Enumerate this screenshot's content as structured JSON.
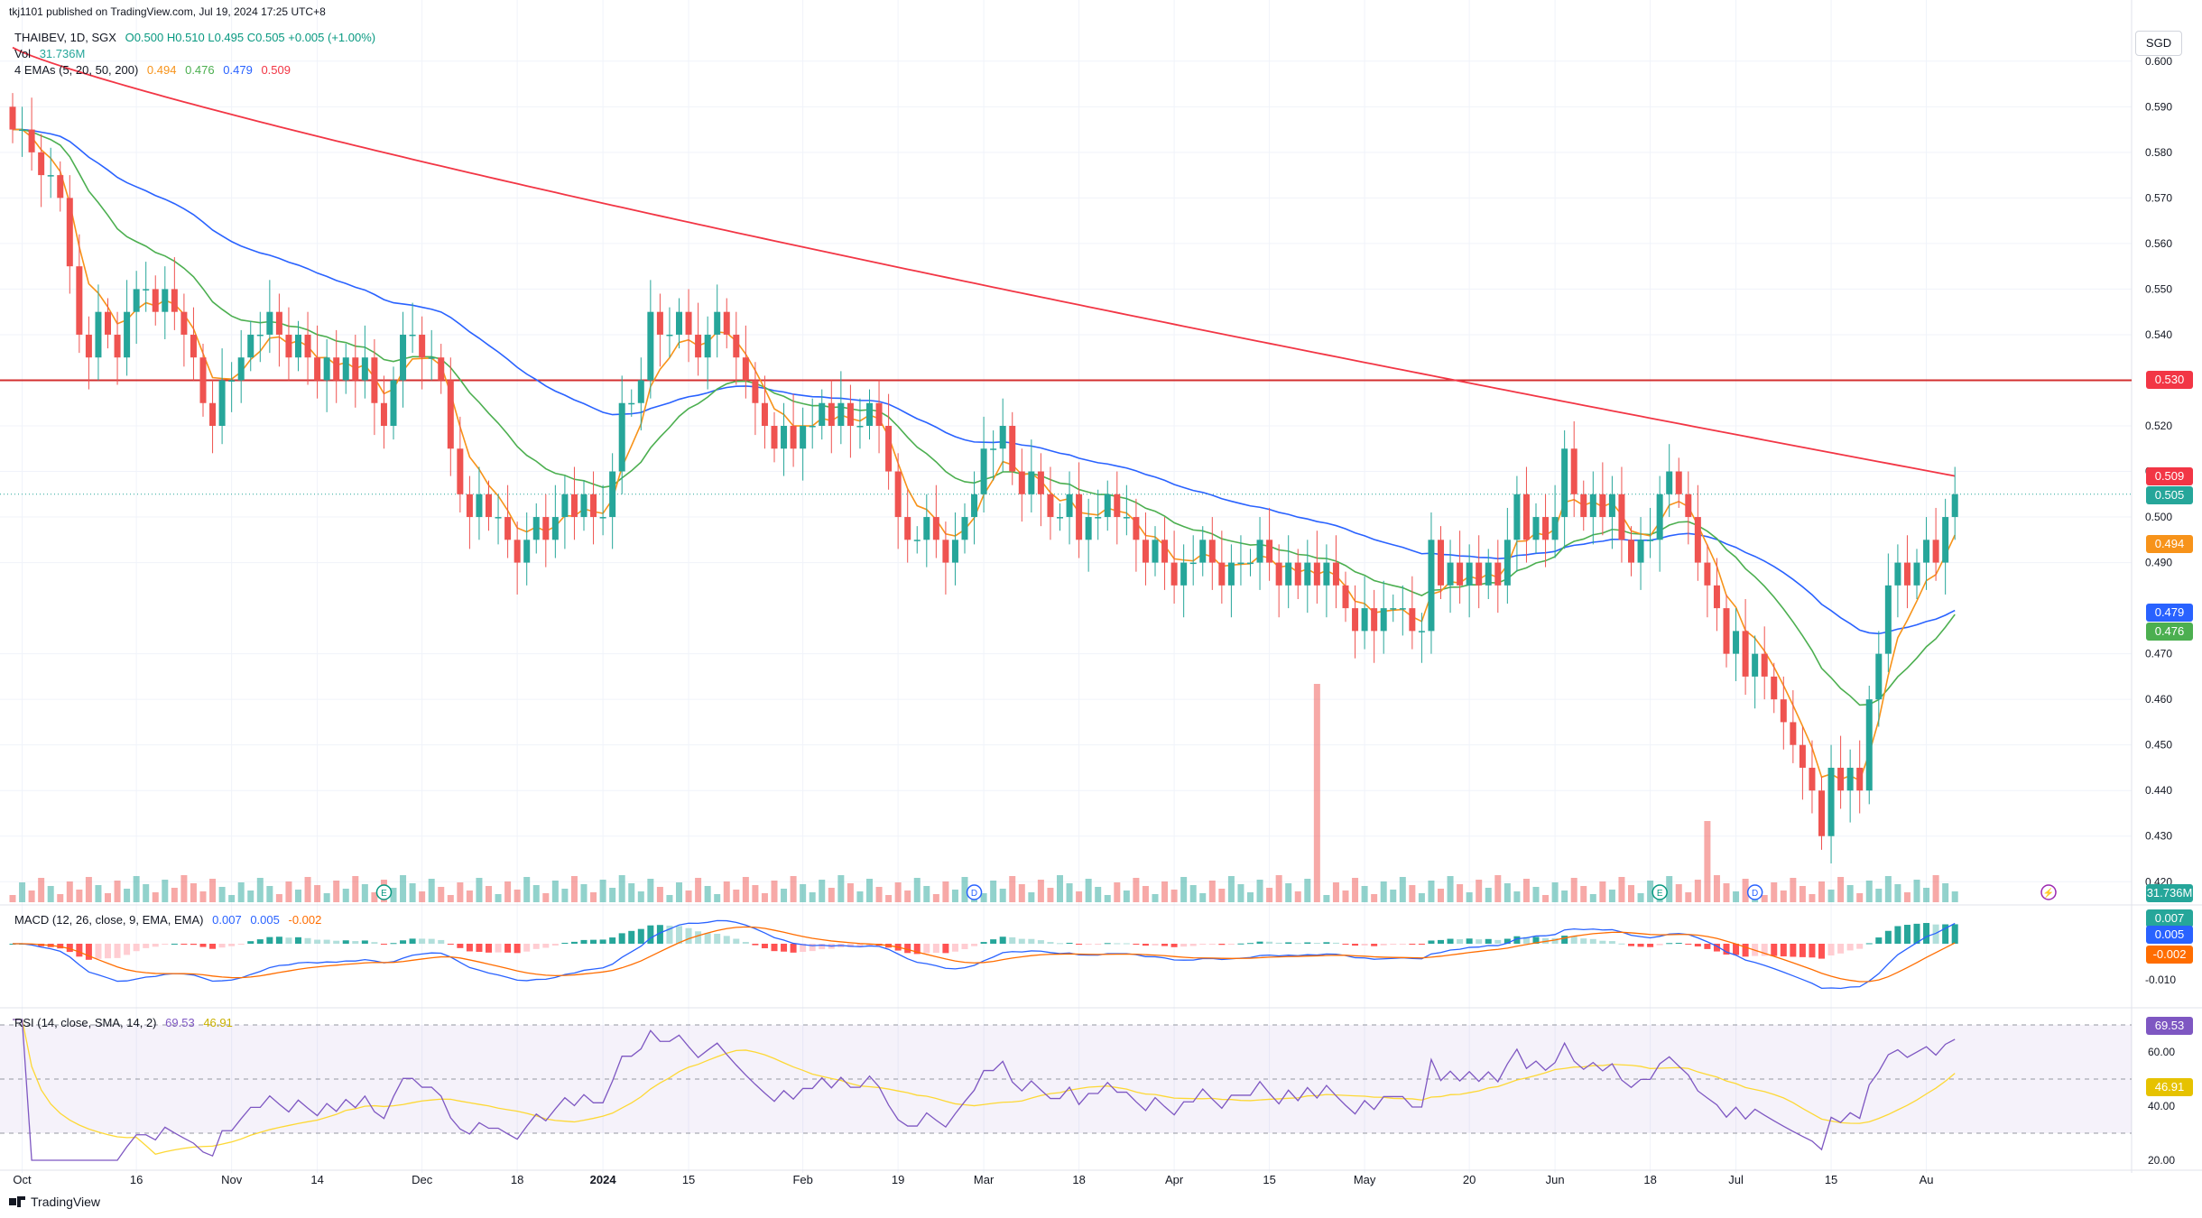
{
  "publisher_line": "tkj1101 published on TradingView.com, Jul 19, 2024 17:25 UTC+8",
  "symbol_line": {
    "symbol": "THAIBEV, 1D, SGX",
    "ohlc": "O0.500 H0.510 L0.495 C0.505 +0.005 (+1.00%)"
  },
  "vol_legend": {
    "label": "Vol",
    "value": "31.736M"
  },
  "ema_legend": {
    "label": "4 EMAs (5, 20, 50, 200)",
    "values": [
      "0.494",
      "0.476",
      "0.479",
      "0.509"
    ]
  },
  "macd_legend": {
    "label": "MACD (12, 26, close, 9, EMA, EMA)",
    "values": [
      "0.007",
      "0.005",
      "-0.002"
    ]
  },
  "rsi_legend": {
    "label": "RSI (14, close, SMA, 14, 2)",
    "values": [
      "69.53",
      "46.91"
    ]
  },
  "currency_button": "SGD",
  "footer_brand": "TradingView",
  "colors": {
    "up": "#26a69a",
    "down": "#ef5350",
    "ema5": "#f7931a",
    "ema20": "#4caf50",
    "ema50": "#2962ff",
    "ema200": "#f23645",
    "macd_line": "#2962ff",
    "signal_line": "#ff6d00",
    "rsi_line": "#7e57c2",
    "rsi_ma": "#fdd835",
    "hline": "#d32f2f"
  },
  "chart_data": {
    "type": "candlestick",
    "horizontal_line": 0.53,
    "price_axis_ticks": [
      "0.600",
      "0.590",
      "0.580",
      "0.570",
      "0.560",
      "0.550",
      "0.540",
      "0.520",
      "0.510",
      "0.500",
      "0.490",
      "0.470",
      "0.460",
      "0.450",
      "0.440",
      "0.430",
      "0.420"
    ],
    "price_range": [
      0.4155,
      0.6055
    ],
    "x_ticks": [
      {
        "i": 1,
        "label": "Oct"
      },
      {
        "i": 13,
        "label": "16"
      },
      {
        "i": 23,
        "label": "Nov"
      },
      {
        "i": 32,
        "label": "14"
      },
      {
        "i": 43,
        "label": "Dec"
      },
      {
        "i": 53,
        "label": "18"
      },
      {
        "i": 62,
        "label": "2024"
      },
      {
        "i": 71,
        "label": "15"
      },
      {
        "i": 83,
        "label": "Feb"
      },
      {
        "i": 93,
        "label": "19"
      },
      {
        "i": 102,
        "label": "Mar"
      },
      {
        "i": 112,
        "label": "18"
      },
      {
        "i": 122,
        "label": "Apr"
      },
      {
        "i": 132,
        "label": "15"
      },
      {
        "i": 142,
        "label": "May"
      },
      {
        "i": 153,
        "label": "20"
      },
      {
        "i": 162,
        "label": "Jun"
      },
      {
        "i": 172,
        "label": "18"
      },
      {
        "i": 181,
        "label": "Jul"
      },
      {
        "i": 191,
        "label": "15"
      },
      {
        "i": 201,
        "label": "Au"
      }
    ],
    "price_tags": [
      {
        "label": "0.530",
        "value": 0.53,
        "color": "#f23645"
      },
      {
        "label": "0.509",
        "value": 0.509,
        "color": "#f23645"
      },
      {
        "label": "0.505",
        "value": 0.505,
        "color": "#26a69a"
      },
      {
        "label": "0.494",
        "value": 0.494,
        "color": "#f7931a"
      },
      {
        "label": "0.479",
        "value": 0.479,
        "color": "#2962ff"
      },
      {
        "label": "0.476",
        "value": 0.476,
        "color": "#4caf50"
      }
    ],
    "close": [
      0.585,
      0.585,
      0.58,
      0.575,
      0.575,
      0.57,
      0.555,
      0.54,
      0.535,
      0.545,
      0.54,
      0.535,
      0.545,
      0.55,
      0.55,
      0.545,
      0.55,
      0.545,
      0.54,
      0.535,
      0.525,
      0.52,
      0.53,
      0.53,
      0.535,
      0.54,
      0.54,
      0.545,
      0.54,
      0.535,
      0.54,
      0.535,
      0.53,
      0.535,
      0.53,
      0.535,
      0.53,
      0.535,
      0.525,
      0.52,
      0.53,
      0.54,
      0.54,
      0.535,
      0.535,
      0.53,
      0.515,
      0.505,
      0.5,
      0.505,
      0.5,
      0.5,
      0.495,
      0.49,
      0.495,
      0.5,
      0.495,
      0.5,
      0.505,
      0.5,
      0.505,
      0.5,
      0.5,
      0.51,
      0.525,
      0.525,
      0.53,
      0.545,
      0.54,
      0.54,
      0.545,
      0.54,
      0.535,
      0.54,
      0.545,
      0.54,
      0.535,
      0.53,
      0.525,
      0.52,
      0.515,
      0.52,
      0.515,
      0.52,
      0.52,
      0.525,
      0.52,
      0.525,
      0.52,
      0.52,
      0.525,
      0.52,
      0.51,
      0.5,
      0.495,
      0.495,
      0.5,
      0.495,
      0.49,
      0.495,
      0.5,
      0.505,
      0.515,
      0.515,
      0.52,
      0.51,
      0.505,
      0.51,
      0.505,
      0.5,
      0.5,
      0.505,
      0.495,
      0.5,
      0.5,
      0.505,
      0.5,
      0.5,
      0.495,
      0.49,
      0.495,
      0.49,
      0.485,
      0.49,
      0.49,
      0.495,
      0.49,
      0.485,
      0.49,
      0.49,
      0.49,
      0.495,
      0.49,
      0.485,
      0.49,
      0.485,
      0.49,
      0.485,
      0.49,
      0.485,
      0.48,
      0.475,
      0.48,
      0.475,
      0.48,
      0.48,
      0.48,
      0.475,
      0.475,
      0.495,
      0.485,
      0.49,
      0.485,
      0.49,
      0.485,
      0.49,
      0.485,
      0.495,
      0.505,
      0.495,
      0.5,
      0.495,
      0.5,
      0.515,
      0.505,
      0.5,
      0.505,
      0.5,
      0.505,
      0.495,
      0.49,
      0.495,
      0.495,
      0.505,
      0.51,
      0.505,
      0.5,
      0.49,
      0.485,
      0.48,
      0.47,
      0.475,
      0.465,
      0.47,
      0.465,
      0.46,
      0.455,
      0.45,
      0.445,
      0.44,
      0.43,
      0.445,
      0.44,
      0.445,
      0.44,
      0.46,
      0.47,
      0.485,
      0.49,
      0.485,
      0.49,
      0.495,
      0.49,
      0.5,
      0.505
    ],
    "volume_units": "M",
    "volume_spike": {
      "i": 137,
      "value": "large"
    },
    "ema_last": {
      "ema5": 0.494,
      "ema20": 0.476,
      "ema50": 0.479,
      "ema200": 0.509
    },
    "macd_axis_ticks": [
      "-0.010"
    ],
    "macd_last": {
      "macd": 0.007,
      "signal": 0.005,
      "hist": -0.002
    },
    "rsi_axis_ticks": [
      "60.00",
      "40.00",
      "20.00"
    ],
    "rsi_last": {
      "rsi": 69.53,
      "ma": 46.91
    },
    "rsi_bands": [
      70,
      50,
      30
    ]
  }
}
